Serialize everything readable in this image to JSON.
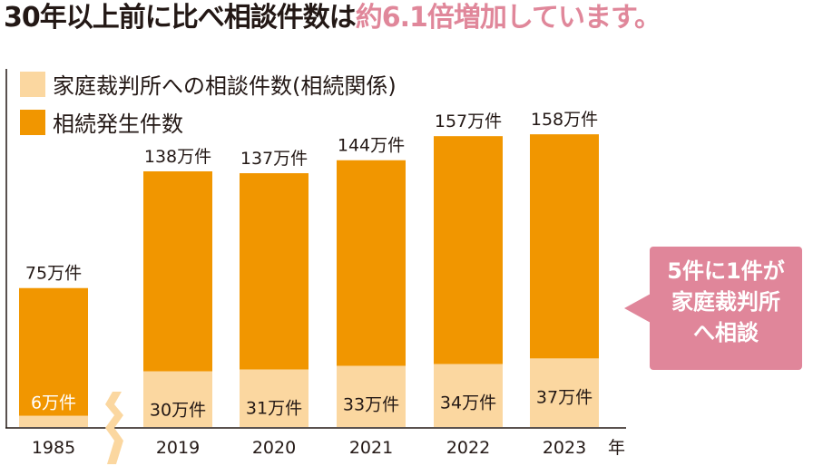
{
  "headline": {
    "prefix": "30年以上前に比べ相談件数は",
    "highlight": "約6.1倍増加しています。"
  },
  "colors": {
    "consultations": "#fbd7a0",
    "inheritances": "#f19600",
    "callout": "#e0869a",
    "accent_text": "#e0879a"
  },
  "callout": {
    "line1": "5件に1件が",
    "line2": "家庭裁判所",
    "line3": "へ相談"
  },
  "chart_data": {
    "type": "bar",
    "stacked": true,
    "categories": [
      "1985",
      "2019",
      "2020",
      "2021",
      "2022",
      "2023"
    ],
    "x_unit_label": "年",
    "series": [
      {
        "name": "家庭裁判所への相談件数(相続関係)",
        "values": [
          6,
          30,
          31,
          33,
          34,
          37
        ],
        "labels": [
          "6万件",
          "30万件",
          "31万件",
          "33万件",
          "34万件",
          "37万件"
        ]
      },
      {
        "name": "相続発生件数",
        "values": [
          75,
          138,
          137,
          144,
          157,
          158
        ],
        "labels": [
          "75万件",
          "138万件",
          "137万件",
          "144万件",
          "157万件",
          "158万件"
        ]
      }
    ],
    "axis_break_after": "1985",
    "legend_position": "top-left",
    "grid": false
  }
}
